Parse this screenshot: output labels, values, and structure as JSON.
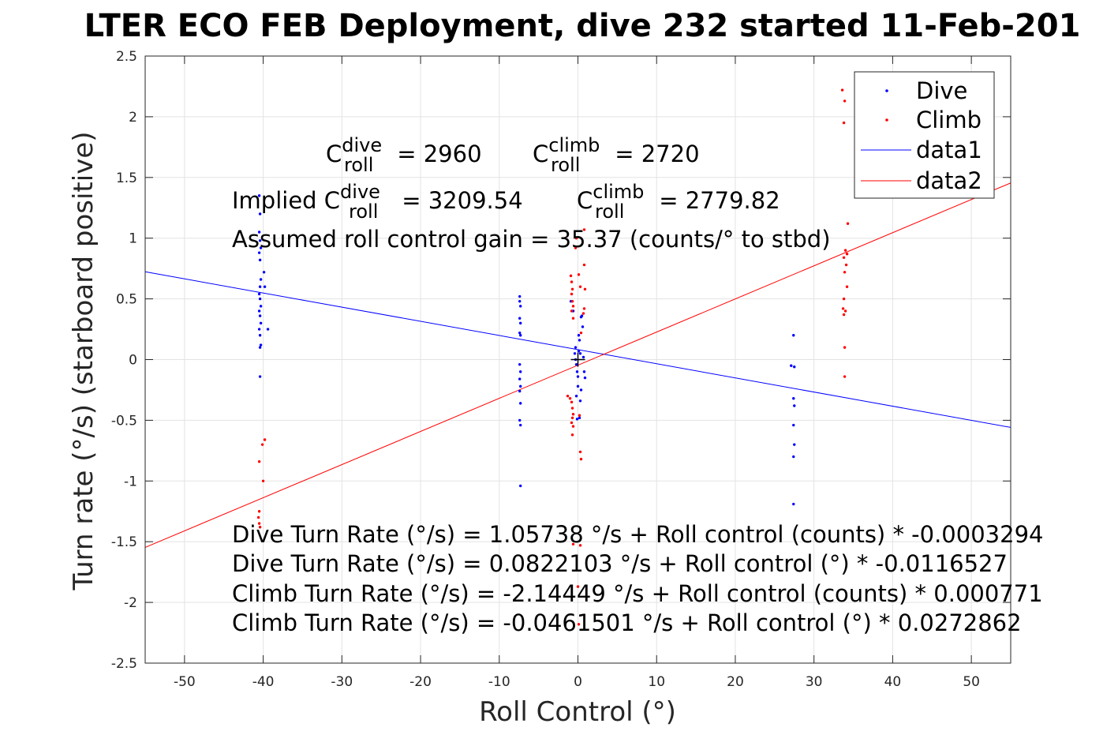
{
  "chart_data": {
    "type": "scatter",
    "title": "LTER ECO FEB Deployment, dive 232 started 11-Feb-201",
    "xlabel": "Roll Control (°)",
    "ylabel": "Turn rate (°/s) (starboard positive)",
    "xlim": [
      -55,
      55
    ],
    "ylim": [
      -2.5,
      2.5
    ],
    "x_ticks": [
      "-50",
      "-40",
      "-30",
      "-20",
      "-10",
      "0",
      "10",
      "20",
      "30",
      "40",
      "50"
    ],
    "x_tick_values": [
      -50,
      -40,
      -30,
      -20,
      -10,
      0,
      10,
      20,
      30,
      40,
      50
    ],
    "y_ticks": [
      "-2.5",
      "-2",
      "-1.5",
      "-1",
      "-0.5",
      "0",
      "0.5",
      "1",
      "1.5",
      "2",
      "2.5"
    ],
    "y_tick_values": [
      -2.5,
      -2,
      -1.5,
      -1,
      -0.5,
      0,
      0.5,
      1,
      1.5,
      2,
      2.5
    ],
    "grid": true,
    "legend_position": "top-right",
    "series": [
      {
        "name": "Dive",
        "kind": "points",
        "color": "#0000ff",
        "points": [
          [
            -40.5,
            1.35
          ],
          [
            -40.4,
            1.2
          ],
          [
            -40.5,
            1.05
          ],
          [
            -40.4,
            0.98
          ],
          [
            -40.3,
            0.92
          ],
          [
            -40.5,
            0.88
          ],
          [
            -40.4,
            0.82
          ],
          [
            -40.3,
            0.66
          ],
          [
            -40.4,
            0.6
          ],
          [
            -40.5,
            0.54
          ],
          [
            -40.4,
            0.5
          ],
          [
            -40.3,
            0.44
          ],
          [
            -40.5,
            0.4
          ],
          [
            -40.4,
            0.36
          ],
          [
            -40.3,
            0.3
          ],
          [
            -40.5,
            0.25
          ],
          [
            -40.4,
            0.2
          ],
          [
            -40.3,
            0.12
          ],
          [
            -40.4,
            0.1
          ],
          [
            -40.4,
            -0.14
          ],
          [
            -39.9,
            0.72
          ],
          [
            -39.8,
            0.6
          ],
          [
            -39.4,
            0.25
          ],
          [
            -7.4,
            0.52
          ],
          [
            -7.4,
            0.48
          ],
          [
            -7.3,
            0.44
          ],
          [
            -7.4,
            0.34
          ],
          [
            -7.3,
            0.3
          ],
          [
            -7.4,
            0.22
          ],
          [
            -7.3,
            0.2
          ],
          [
            -7.4,
            -0.04
          ],
          [
            -7.3,
            -0.1
          ],
          [
            -7.4,
            -0.16
          ],
          [
            -7.3,
            -0.22
          ],
          [
            -7.4,
            -0.26
          ],
          [
            -7.3,
            -0.36
          ],
          [
            -7.4,
            -0.5
          ],
          [
            -7.3,
            -0.54
          ],
          [
            -7.3,
            -1.04
          ],
          [
            -0.9,
            0.48
          ],
          [
            -0.6,
            0.4
          ],
          [
            -0.4,
            0.05
          ],
          [
            -0.3,
            0.0
          ],
          [
            -0.2,
            -0.04
          ],
          [
            -0.1,
            -0.1
          ],
          [
            0.0,
            -0.14
          ],
          [
            0.1,
            0.2
          ],
          [
            0.2,
            0.16
          ],
          [
            0.3,
            0.05
          ],
          [
            0.4,
            0.35
          ],
          [
            0.5,
            0.36
          ],
          [
            0.6,
            0.27
          ],
          [
            0.7,
            0.02
          ],
          [
            0.8,
            -0.1
          ],
          [
            0.9,
            -0.15
          ],
          [
            0.0,
            -0.22
          ],
          [
            -0.2,
            -0.3
          ],
          [
            0.3,
            -0.34
          ],
          [
            0.2,
            -0.48
          ],
          [
            -0.3,
            0.1
          ],
          [
            0.1,
            0.07
          ],
          [
            0.4,
            -0.25
          ],
          [
            -0.1,
            -0.49
          ],
          [
            27.1,
            -0.05
          ],
          [
            27.5,
            -0.06
          ],
          [
            27.4,
            0.2
          ],
          [
            27.4,
            -0.32
          ],
          [
            27.5,
            -0.38
          ],
          [
            27.4,
            -0.54
          ],
          [
            27.5,
            -0.7
          ],
          [
            27.4,
            -0.8
          ],
          [
            27.4,
            -1.19
          ]
        ]
      },
      {
        "name": "Climb",
        "kind": "points",
        "color": "#ff0000",
        "points": [
          [
            -40.5,
            -0.84
          ],
          [
            -40.1,
            -0.7
          ],
          [
            -39.8,
            -0.66
          ],
          [
            -40.0,
            -1.0
          ],
          [
            -40.5,
            -1.25
          ],
          [
            -40.6,
            -1.3
          ],
          [
            -40.5,
            -1.35
          ],
          [
            -40.4,
            -1.38
          ],
          [
            -1.3,
            -0.3
          ],
          [
            -1.0,
            -0.32
          ],
          [
            -0.9,
            0.69
          ],
          [
            -0.8,
            0.64
          ],
          [
            -0.7,
            0.58
          ],
          [
            -0.8,
            0.54
          ],
          [
            -0.7,
            0.48
          ],
          [
            -0.6,
            0.44
          ],
          [
            -0.8,
            0.4
          ],
          [
            -0.6,
            0.34
          ],
          [
            -0.8,
            -0.35
          ],
          [
            -0.7,
            -0.4
          ],
          [
            -0.6,
            -0.45
          ],
          [
            -0.7,
            -0.48
          ],
          [
            -0.8,
            -0.52
          ],
          [
            -0.6,
            -0.55
          ],
          [
            -0.7,
            -0.62
          ],
          [
            -0.6,
            -1.52
          ],
          [
            -0.3,
            0.92
          ],
          [
            -0.2,
            1.0
          ],
          [
            0.1,
            0.7
          ],
          [
            0.3,
            0.6
          ],
          [
            0.4,
            0.22
          ],
          [
            0.2,
            -0.46
          ],
          [
            0.3,
            -0.76
          ],
          [
            0.4,
            -0.82
          ],
          [
            0.3,
            -1.53
          ],
          [
            0.0,
            -1.87
          ],
          [
            0.1,
            -2.18
          ],
          [
            0.8,
            0.78
          ],
          [
            0.9,
            0.58
          ],
          [
            0.8,
            0.42
          ],
          [
            0.7,
            0.38
          ],
          [
            0.8,
            1.07
          ],
          [
            33.6,
            2.22
          ],
          [
            33.9,
            2.13
          ],
          [
            33.8,
            1.95
          ],
          [
            34.3,
            1.12
          ],
          [
            34.0,
            0.9
          ],
          [
            34.2,
            0.87
          ],
          [
            33.8,
            0.84
          ],
          [
            34.1,
            0.78
          ],
          [
            33.9,
            0.72
          ],
          [
            34.2,
            0.6
          ],
          [
            33.8,
            0.5
          ],
          [
            33.7,
            0.42
          ],
          [
            34.0,
            0.4
          ],
          [
            33.8,
            0.37
          ],
          [
            33.9,
            0.1
          ],
          [
            33.9,
            -0.14
          ]
        ]
      },
      {
        "name": "data1",
        "kind": "line",
        "color": "#0000ff",
        "x": [
          -55,
          55
        ],
        "y": [
          0.7231,
          -0.5587
        ]
      },
      {
        "name": "data2",
        "kind": "line",
        "color": "#ff0000",
        "x": [
          -55,
          55
        ],
        "y": [
          -1.547,
          1.4547
        ]
      }
    ],
    "mean_marker": {
      "symbol": "+",
      "x": 0.0,
      "y": 0.0
    },
    "annotations": {
      "c_roll_dive": {
        "prefix": "C",
        "sup": "dive",
        "sub": "roll",
        "suffix": " = 2960"
      },
      "c_roll_climb": {
        "prefix": "C",
        "sup": "climb",
        "sub": "roll",
        "suffix": " = 2720"
      },
      "implied_dive": {
        "prefix": "Implied C",
        "sup": "dive",
        "sub": "roll",
        "suffix": " = 3209.54"
      },
      "implied_climb": {
        "prefix": "C",
        "sup": "climb",
        "sub": "roll",
        "suffix": " = 2779.82"
      },
      "gain": "Assumed roll control gain = 35.37 (counts/° to stbd)",
      "fit_lines": [
        "Dive Turn Rate (°/s) = 1.05738 °/s + Roll control (counts) * -0.0003294",
        "Dive Turn Rate (°/s) = 0.0822103 °/s + Roll control (°) * -0.0116527",
        "Climb Turn Rate (°/s) = -2.14449 °/s + Roll control (counts) * 0.000771",
        "Climb Turn Rate (°/s) = -0.0461501 °/s + Roll control (°) * 0.0272862"
      ]
    },
    "legend": [
      "Dive",
      "Climb",
      "data1",
      "data2"
    ]
  }
}
